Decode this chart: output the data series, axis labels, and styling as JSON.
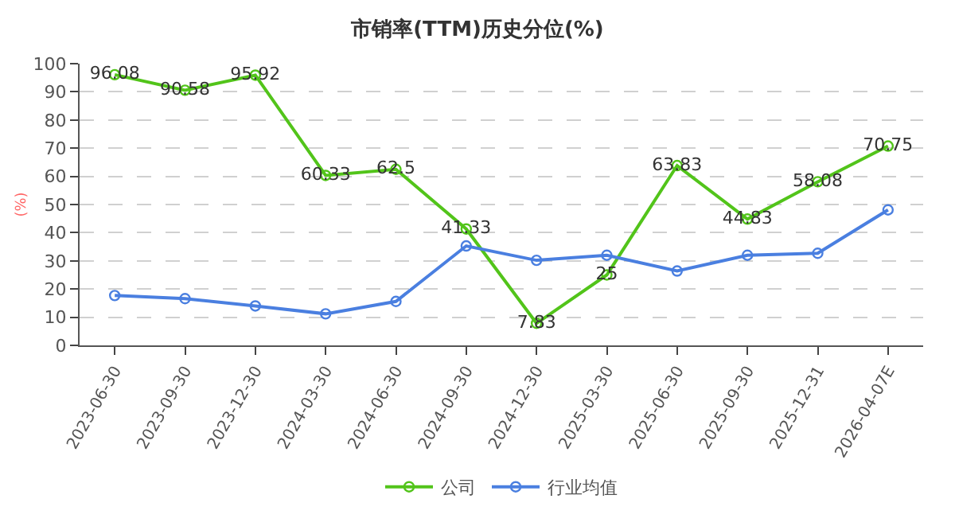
{
  "chart_data": {
    "type": "line",
    "title": "市销率(TTM)历史分位(%)",
    "ylabel": "(%)",
    "categories": [
      "2023-06-30",
      "2023-09-30",
      "2023-12-30",
      "2024-03-30",
      "2024-06-30",
      "2024-09-30",
      "2024-12-30",
      "2025-03-30",
      "2025-06-30",
      "2025-09-30",
      "2025-12-31",
      "2026-04-07E"
    ],
    "series": [
      {
        "name": "公司",
        "color": "#52c41a",
        "values": [
          96.08,
          90.58,
          95.92,
          60.33,
          62.5,
          41.33,
          7.83,
          25,
          63.83,
          44.83,
          58.08,
          70.75
        ],
        "value_labels": [
          "96.08",
          "90.58",
          "95.92",
          "60.33",
          "62.5",
          "41.33",
          "7.83",
          "25",
          "63.83",
          "44.83",
          "58.08",
          "70.75"
        ]
      },
      {
        "name": "行业均值",
        "color": "#4a7fe0",
        "values": [
          17.7,
          16.6,
          14.0,
          11.2,
          15.6,
          35.3,
          30.2,
          32.0,
          26.4,
          32.0,
          32.7,
          48.1
        ]
      }
    ],
    "ylim": [
      0,
      100
    ],
    "yticks": [
      0,
      10,
      20,
      30,
      40,
      50,
      60,
      70,
      80,
      90,
      100
    ],
    "grid": "y",
    "legend": "bottom",
    "marker": "circle",
    "line_style": "solid"
  }
}
